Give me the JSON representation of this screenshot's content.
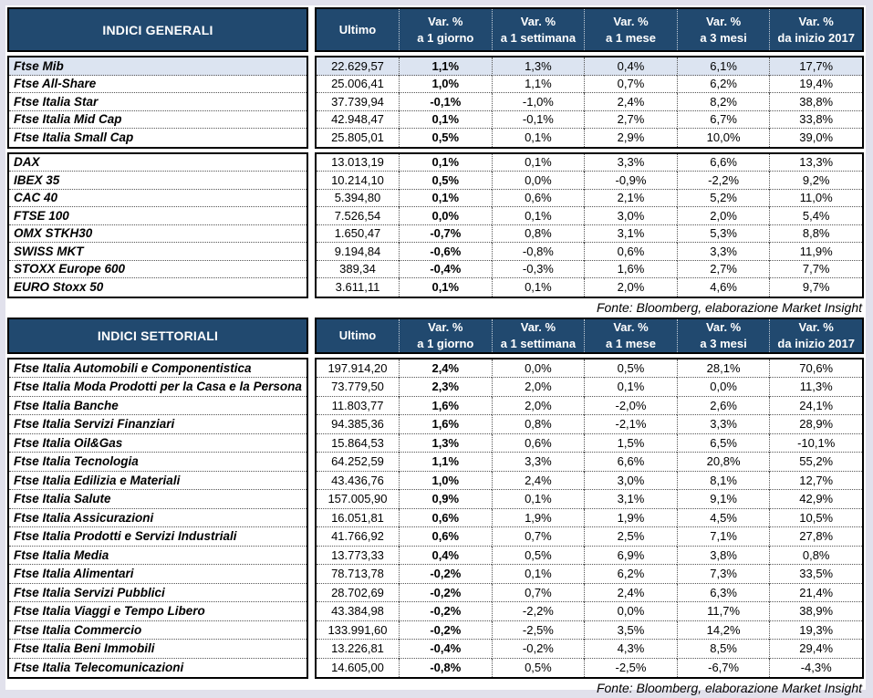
{
  "colors": {
    "header_bg": "#21496F",
    "header_text": "#FFFFFF",
    "highlight_row": "#DCE4F1",
    "table_border": "#000000",
    "page_edge": "#E1E1EC"
  },
  "columns": [
    {
      "line1": "Ultimo",
      "line2": ""
    },
    {
      "line1": "Var. %",
      "line2": "a 1 giorno"
    },
    {
      "line1": "Var. %",
      "line2": "a 1 settimana"
    },
    {
      "line1": "Var. %",
      "line2": "a 1 mese"
    },
    {
      "line1": "Var. %",
      "line2": "a 3 mesi"
    },
    {
      "line1": "Var. %",
      "line2": "da inizio 2017"
    }
  ],
  "tables": [
    {
      "title": "INDICI GENERALI",
      "source": "Fonte: Bloomberg, elaborazione Market Insight",
      "groups": [
        {
          "rows": [
            {
              "name": "Ftse Mib",
              "highlight": true,
              "values": [
                "22.629,57",
                "1,1%",
                "1,3%",
                "0,4%",
                "6,1%",
                "17,7%"
              ]
            },
            {
              "name": "Ftse All-Share",
              "highlight": false,
              "values": [
                "25.006,41",
                "1,0%",
                "1,1%",
                "0,7%",
                "6,2%",
                "19,4%"
              ]
            },
            {
              "name": "Ftse Italia Star",
              "highlight": false,
              "values": [
                "37.739,94",
                "-0,1%",
                "-1,0%",
                "2,4%",
                "8,2%",
                "38,8%"
              ]
            },
            {
              "name": "Ftse Italia Mid Cap",
              "highlight": false,
              "values": [
                "42.948,47",
                "0,1%",
                "-0,1%",
                "2,7%",
                "6,7%",
                "33,8%"
              ]
            },
            {
              "name": "Ftse Italia Small Cap",
              "highlight": false,
              "values": [
                "25.805,01",
                "0,5%",
                "0,1%",
                "2,9%",
                "10,0%",
                "39,0%"
              ]
            }
          ]
        },
        {
          "rows": [
            {
              "name": "DAX",
              "highlight": false,
              "values": [
                "13.013,19",
                "0,1%",
                "0,1%",
                "3,3%",
                "6,6%",
                "13,3%"
              ]
            },
            {
              "name": "IBEX 35",
              "highlight": false,
              "values": [
                "10.214,10",
                "0,5%",
                "0,0%",
                "-0,9%",
                "-2,2%",
                "9,2%"
              ]
            },
            {
              "name": "CAC 40",
              "highlight": false,
              "values": [
                "5.394,80",
                "0,1%",
                "0,6%",
                "2,1%",
                "5,2%",
                "11,0%"
              ]
            },
            {
              "name": "FTSE 100",
              "highlight": false,
              "values": [
                "7.526,54",
                "0,0%",
                "0,1%",
                "3,0%",
                "2,0%",
                "5,4%"
              ]
            },
            {
              "name": "OMX STKH30",
              "highlight": false,
              "values": [
                "1.650,47",
                "-0,7%",
                "0,8%",
                "3,1%",
                "5,3%",
                "8,8%"
              ]
            },
            {
              "name": "SWISS MKT",
              "highlight": false,
              "values": [
                "9.194,84",
                "-0,6%",
                "-0,8%",
                "0,6%",
                "3,3%",
                "11,9%"
              ]
            },
            {
              "name": "STOXX Europe 600",
              "highlight": false,
              "values": [
                "389,34",
                "-0,4%",
                "-0,3%",
                "1,6%",
                "2,7%",
                "7,7%"
              ]
            },
            {
              "name": "EURO Stoxx 50",
              "highlight": false,
              "values": [
                "3.611,11",
                "0,1%",
                "0,1%",
                "2,0%",
                "4,6%",
                "9,7%"
              ]
            }
          ]
        }
      ]
    },
    {
      "title": "INDICI SETTORIALI",
      "source": "Fonte: Bloomberg, elaborazione Market Insight",
      "groups": [
        {
          "rows": [
            {
              "name": "Ftse Italia Automobili e Componentistica",
              "highlight": false,
              "values": [
                "197.914,20",
                "2,4%",
                "0,0%",
                "0,5%",
                "28,1%",
                "70,6%"
              ]
            },
            {
              "name": "Ftse Italia Moda Prodotti per la Casa e la Persona",
              "highlight": false,
              "values": [
                "73.779,50",
                "2,3%",
                "2,0%",
                "0,1%",
                "0,0%",
                "11,3%"
              ]
            },
            {
              "name": "Ftse Italia Banche",
              "highlight": false,
              "values": [
                "11.803,77",
                "1,6%",
                "2,0%",
                "-2,0%",
                "2,6%",
                "24,1%"
              ]
            },
            {
              "name": "Ftse Italia Servizi Finanziari",
              "highlight": false,
              "values": [
                "94.385,36",
                "1,6%",
                "0,8%",
                "-2,1%",
                "3,3%",
                "28,9%"
              ]
            },
            {
              "name": "Ftse Italia Oil&Gas",
              "highlight": false,
              "values": [
                "15.864,53",
                "1,3%",
                "0,6%",
                "1,5%",
                "6,5%",
                "-10,1%"
              ]
            },
            {
              "name": "Ftse Italia Tecnologia",
              "highlight": false,
              "values": [
                "64.252,59",
                "1,1%",
                "3,3%",
                "6,6%",
                "20,8%",
                "55,2%"
              ]
            },
            {
              "name": "Ftse Italia Edilizia e Materiali",
              "highlight": false,
              "values": [
                "43.436,76",
                "1,0%",
                "2,4%",
                "3,0%",
                "8,1%",
                "12,7%"
              ]
            },
            {
              "name": "Ftse Italia Salute",
              "highlight": false,
              "values": [
                "157.005,90",
                "0,9%",
                "0,1%",
                "3,1%",
                "9,1%",
                "42,9%"
              ]
            },
            {
              "name": "Ftse Italia Assicurazioni",
              "highlight": false,
              "values": [
                "16.051,81",
                "0,6%",
                "1,9%",
                "1,9%",
                "4,5%",
                "10,5%"
              ]
            },
            {
              "name": "Ftse Italia Prodotti e Servizi Industriali",
              "highlight": false,
              "values": [
                "41.766,92",
                "0,6%",
                "0,7%",
                "2,5%",
                "7,1%",
                "27,8%"
              ]
            },
            {
              "name": "Ftse Italia Media",
              "highlight": false,
              "values": [
                "13.773,33",
                "0,4%",
                "0,5%",
                "6,9%",
                "3,8%",
                "0,8%"
              ]
            },
            {
              "name": "Ftse Italia Alimentari",
              "highlight": false,
              "values": [
                "78.713,78",
                "-0,2%",
                "0,1%",
                "6,2%",
                "7,3%",
                "33,5%"
              ]
            },
            {
              "name": "Ftse Italia Servizi Pubblici",
              "highlight": false,
              "values": [
                "28.702,69",
                "-0,2%",
                "0,7%",
                "2,4%",
                "6,3%",
                "21,4%"
              ]
            },
            {
              "name": "Ftse Italia Viaggi e Tempo Libero",
              "highlight": false,
              "values": [
                "43.384,98",
                "-0,2%",
                "-2,2%",
                "0,0%",
                "11,7%",
                "38,9%"
              ]
            },
            {
              "name": "Ftse Italia Commercio",
              "highlight": false,
              "values": [
                "133.991,60",
                "-0,2%",
                "-2,5%",
                "3,5%",
                "14,2%",
                "19,3%"
              ]
            },
            {
              "name": "Ftse Italia Beni Immobili",
              "highlight": false,
              "values": [
                "13.226,81",
                "-0,4%",
                "-0,2%",
                "4,3%",
                "8,5%",
                "29,4%"
              ]
            },
            {
              "name": "Ftse Italia Telecomunicazioni",
              "highlight": false,
              "values": [
                "14.605,00",
                "-0,8%",
                "0,5%",
                "-2,5%",
                "-6,7%",
                "-4,3%"
              ]
            }
          ]
        }
      ]
    }
  ]
}
